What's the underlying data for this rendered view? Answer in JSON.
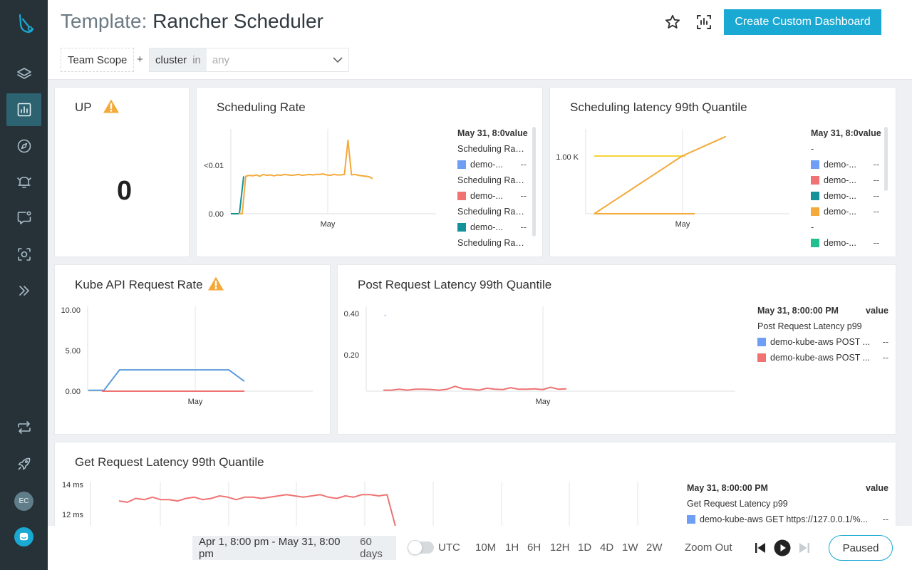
{
  "header": {
    "title_prefix": "Template:",
    "title": "Rancher Scheduler",
    "create_button": "Create Custom Dashboard",
    "scope": "Team Scope",
    "plus": "+",
    "filter_key": "cluster",
    "filter_op": "in",
    "filter_value": "any"
  },
  "sidebar": {
    "avatar_initials": "EC",
    "icons": [
      "logo-icon",
      "layers-icon",
      "dashboard-icon",
      "compass-icon",
      "alert-icon",
      "chat-icon",
      "capture-icon",
      "expand-icon",
      "swap-icon",
      "rocket-icon",
      "chat-bubble-icon"
    ]
  },
  "panels": {
    "up": {
      "title": "UP",
      "value": "0"
    },
    "scheduling_rate": {
      "title": "Scheduling Rate",
      "legend_header": "May 31, 8:0",
      "legend_value_header": "value",
      "rows": [
        {
          "type": "group",
          "name": "Scheduling Rate..."
        },
        {
          "type": "series",
          "name": "demo-...",
          "value": "--",
          "color": "#6e9ef5"
        },
        {
          "type": "group",
          "name": "Scheduling Rate..."
        },
        {
          "type": "series",
          "name": "demo-...",
          "value": "--",
          "color": "#f07273"
        },
        {
          "type": "group",
          "name": "Scheduling Rate..."
        },
        {
          "type": "series",
          "name": "demo-...",
          "value": "--",
          "color": "#13929a"
        },
        {
          "type": "group",
          "name": "Scheduling Rate..."
        }
      ]
    },
    "sched_latency": {
      "title": "Scheduling latency 99th Quantile",
      "legend_header": "May 31, 8:0",
      "legend_value_header": "value",
      "rows": [
        {
          "type": "group",
          "name": "-"
        },
        {
          "type": "series",
          "name": "demo-...",
          "value": "--",
          "color": "#6e9ef5"
        },
        {
          "type": "series",
          "name": "demo-...",
          "value": "--",
          "color": "#f07273"
        },
        {
          "type": "series",
          "name": "demo-...",
          "value": "--",
          "color": "#13929a"
        },
        {
          "type": "series",
          "name": "demo-...",
          "value": "--",
          "color": "#f5a93a"
        },
        {
          "type": "group",
          "name": "-"
        },
        {
          "type": "series",
          "name": "demo-...",
          "value": "--",
          "color": "#1fbf8f"
        }
      ]
    },
    "kube_api": {
      "title": "Kube API Request Rate"
    },
    "post_latency": {
      "title": "Post Request Latency 99th Quantile",
      "legend_header": "May 31, 8:00:00 PM",
      "legend_value_header": "value",
      "rows": [
        {
          "type": "group",
          "name": "Post Request Latency p99"
        },
        {
          "type": "series",
          "name": "demo-kube-aws POST ...",
          "value": "--",
          "color": "#6e9ef5"
        },
        {
          "type": "series",
          "name": "demo-kube-aws POST ...",
          "value": "--",
          "color": "#f07273"
        }
      ]
    },
    "get_latency": {
      "title": "Get Request Latency 99th Quantile",
      "legend_header": "May 31, 8:00:00 PM",
      "legend_value_header": "value",
      "rows": [
        {
          "type": "group",
          "name": "Get Request Latency p99"
        },
        {
          "type": "series",
          "name": "demo-kube-aws GET https://127.0.0.1/%...",
          "value": "--",
          "color": "#6e9ef5"
        }
      ]
    }
  },
  "chart_data": [
    {
      "type": "line",
      "title": "Scheduling Rate",
      "x_tick_labels": [
        "May"
      ],
      "y_tick_labels": [
        "0.00",
        "<0.01"
      ],
      "series": [
        {
          "color": "#13929a",
          "values": [
            0,
            0,
            0,
            0.008
          ]
        },
        {
          "color": "#f5a93a",
          "values": [
            0,
            0,
            0.008,
            0.0082,
            0.0081,
            0.0083,
            0.008,
            0.0084,
            0.0082,
            0.0083,
            0.0081,
            0.0083,
            0.0082,
            0.0084,
            0.0083,
            0.0082,
            0.0083,
            0.0084,
            0.0082,
            0.0083,
            0.0084,
            0.0083,
            0.0084,
            0.0084,
            0.0085,
            0.0083,
            0.0082,
            0.0084,
            0.0083,
            0.0083,
            0.0084,
            0.0157,
            0.0083,
            0.0084,
            0.0082,
            0.0081,
            0.008,
            0.0079,
            0.0075
          ]
        }
      ]
    },
    {
      "type": "line",
      "title": "Scheduling latency 99th Quantile",
      "x_tick_labels": [
        "May"
      ],
      "y_tick_labels": [
        "1.00 K"
      ],
      "series": [
        {
          "color": "#f5d43a",
          "values": [
            1000,
            1000,
            1000,
            1000,
            1000,
            1000
          ]
        },
        {
          "color": "#f5a93a",
          "values": [
            0,
            250,
            500,
            750,
            1000,
            1170,
            1340
          ]
        },
        {
          "color": "#f5a93a",
          "values": [
            0,
            0,
            0,
            0,
            0
          ]
        }
      ]
    },
    {
      "type": "line",
      "title": "Kube API Request Rate",
      "x_tick_labels": [
        "May"
      ],
      "y_tick_labels": [
        "0.00",
        "5.00",
        "10.00"
      ],
      "series": [
        {
          "color": "#5b9bd8",
          "values": [
            0.1,
            0.1,
            2.6,
            2.6,
            2.6,
            2.6,
            2.6,
            2.6,
            2.6,
            2.6,
            1.2
          ]
        },
        {
          "color": "#f07273",
          "values": [
            0,
            0,
            0,
            0,
            0,
            0
          ]
        }
      ]
    },
    {
      "type": "line",
      "title": "Post Request Latency 99th Quantile",
      "x_tick_labels": [
        "May"
      ],
      "y_tick_labels": [
        "0.20",
        "0.40"
      ],
      "series": [
        {
          "color": "#6e9ef5",
          "values": [
            0.39
          ]
        },
        {
          "color": "#f07273",
          "values": [
            0.005,
            0.005,
            0.01,
            0.005,
            0.01,
            0.01,
            0.008,
            0.005,
            0.01,
            0.025,
            0.012,
            0.01,
            0.005,
            0.015,
            0.01,
            0.008,
            0.018,
            0.01,
            0.01,
            0.012,
            0.008,
            0.02,
            0.01,
            0.012
          ]
        }
      ]
    },
    {
      "type": "line",
      "title": "Get Request Latency 99th Quantile",
      "x_tick_labels": [],
      "y_tick_labels": [
        "12 ms",
        "14 ms"
      ],
      "series": [
        {
          "color": "#f07273",
          "values": [
            13.1,
            13.0,
            13.3,
            13.2,
            13.4,
            13.2,
            13.2,
            13.1,
            13.3,
            13.4,
            13.2,
            13.3,
            13.5,
            13.4,
            13.2,
            13.4,
            13.4,
            13.3,
            13.4,
            13.5,
            13.6,
            13.5,
            13.4,
            13.5,
            13.6,
            13.4,
            13.3,
            13.5,
            13.4,
            13.6,
            13.6,
            13.5,
            13.6,
            11.1
          ]
        }
      ]
    }
  ],
  "timebar": {
    "range": "Apr 1, 8:00 pm - May 31, 8:00 pm",
    "days": "60 days",
    "utc": "UTC",
    "buttons": [
      "10M",
      "1H",
      "6H",
      "12H",
      "1D",
      "4D",
      "1W",
      "2W"
    ],
    "zoom_out": "Zoom Out",
    "paused": "Paused"
  },
  "colors": {
    "accent": "#1aa9d3",
    "sidebar": "#263238",
    "warning": "#f5a93a"
  }
}
